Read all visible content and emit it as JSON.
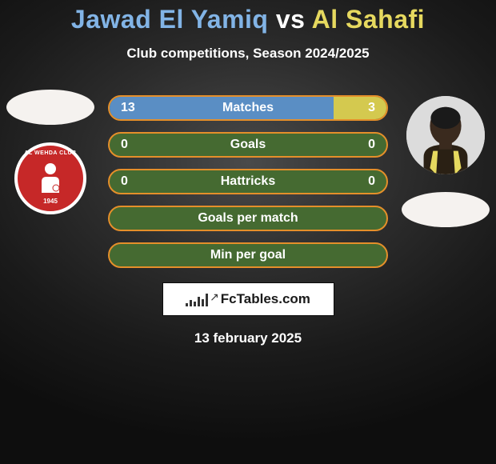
{
  "colors": {
    "player1_accent": "#82b4e6",
    "player2_accent": "#e6d95f",
    "row_border": "#e58f2a",
    "row_fill_blue": "#5a8ec4",
    "row_fill_yellow": "#d4c94f",
    "row_bg_inner": "#456a31"
  },
  "header": {
    "player1_name": "Jawad El Yamiq",
    "vs": "vs",
    "player2_name": "Al Sahafi",
    "subtitle": "Club competitions, Season 2024/2025"
  },
  "left_badge": {
    "club_text": "AL WEHDA CLUB",
    "year": "1945"
  },
  "stats": [
    {
      "label": "Matches",
      "left_val": "13",
      "right_val": "3",
      "left_pct": 81,
      "right_pct": 19,
      "show_vals": true
    },
    {
      "label": "Goals",
      "left_val": "0",
      "right_val": "0",
      "left_pct": 0,
      "right_pct": 0,
      "show_vals": true
    },
    {
      "label": "Hattricks",
      "left_val": "0",
      "right_val": "0",
      "left_pct": 0,
      "right_pct": 0,
      "show_vals": true
    },
    {
      "label": "Goals per match",
      "left_val": "",
      "right_val": "",
      "left_pct": 0,
      "right_pct": 0,
      "show_vals": false
    },
    {
      "label": "Min per goal",
      "left_val": "",
      "right_val": "",
      "left_pct": 0,
      "right_pct": 0,
      "show_vals": false
    }
  ],
  "footer": {
    "brand_text": "FcTables.com",
    "date": "13 february 2025"
  },
  "mini_bars": [
    4,
    8,
    6,
    12,
    9,
    16
  ]
}
